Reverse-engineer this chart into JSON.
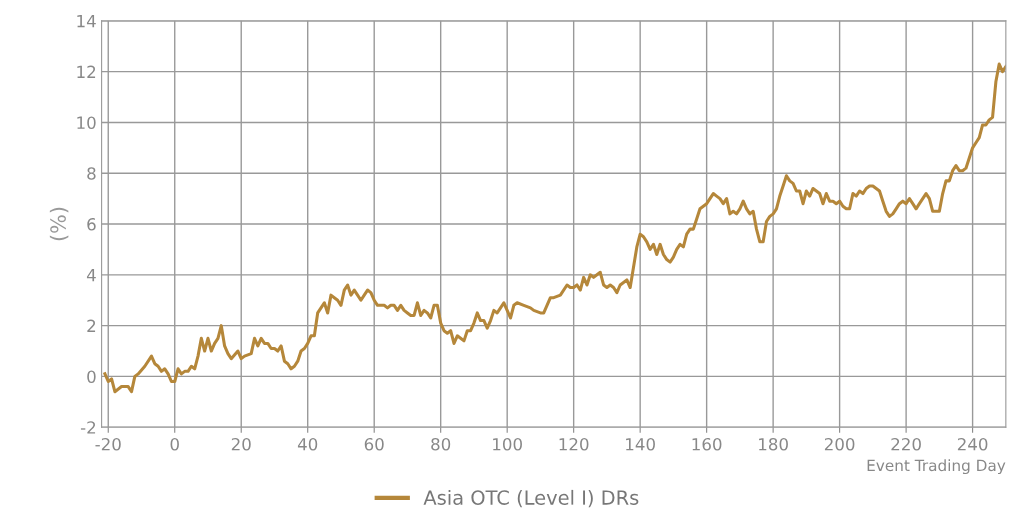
{
  "chart_data": {
    "type": "line",
    "xlabel": "Event Trading Day",
    "ylabel": "(%)",
    "xlim": [
      -22,
      250
    ],
    "xticks": [
      -20,
      0,
      20,
      40,
      60,
      80,
      100,
      120,
      140,
      160,
      180,
      200,
      220,
      240
    ],
    "ylim": [
      -2,
      14
    ],
    "yticks": [
      -2,
      0,
      2,
      4,
      6,
      8,
      10,
      12,
      14
    ],
    "grid": true,
    "legend": "bottom",
    "marker": "none",
    "line_style": "solid",
    "series": [
      {
        "name": "Asia OTC (Level I) DRs",
        "color": "#b5873a",
        "x": [
          -21,
          -20,
          -19,
          -18,
          -16,
          -14,
          -13,
          -12,
          -11,
          -9,
          -7,
          -6,
          -5,
          -4,
          -3,
          -2,
          -1,
          0,
          1,
          2,
          3,
          4,
          5,
          6,
          7,
          8,
          9,
          10,
          11,
          12,
          13,
          14,
          15,
          16,
          17,
          19,
          20,
          21,
          23,
          24,
          25,
          26,
          27,
          28,
          29,
          30,
          31,
          32,
          33,
          34,
          35,
          36,
          37,
          38,
          39,
          40,
          41,
          42,
          43,
          44,
          45,
          46,
          47,
          48,
          49,
          50,
          51,
          52,
          53,
          54,
          55,
          56,
          57,
          58,
          59,
          60,
          61,
          63,
          64,
          65,
          66,
          67,
          68,
          69,
          70,
          71,
          72,
          73,
          74,
          75,
          76,
          77,
          78,
          79,
          80,
          81,
          82,
          83,
          84,
          85,
          86,
          87,
          88,
          89,
          90,
          91,
          92,
          93,
          94,
          95,
          96,
          97,
          98,
          99,
          100,
          101,
          102,
          103,
          105,
          107,
          108,
          110,
          111,
          113,
          114,
          116,
          118,
          119,
          120,
          121,
          122,
          123,
          124,
          125,
          126,
          127,
          128,
          129,
          130,
          131,
          132,
          133,
          134,
          135,
          136,
          137,
          138,
          139,
          140,
          141,
          142,
          143,
          144,
          145,
          146,
          147,
          148,
          149,
          150,
          151,
          152,
          153,
          154,
          155,
          156,
          157,
          158,
          159,
          160,
          161,
          162,
          163,
          164,
          165,
          166,
          167,
          168,
          169,
          170,
          171,
          172,
          173,
          174,
          175,
          176,
          177,
          178,
          179,
          180,
          181,
          182,
          183,
          184,
          185,
          186,
          187,
          188,
          189,
          190,
          191,
          192,
          193,
          194,
          195,
          196,
          197,
          198,
          199,
          200,
          201,
          202,
          203,
          204,
          205,
          206,
          207,
          208,
          209,
          210,
          211,
          212,
          213,
          214,
          215,
          216,
          217,
          218,
          219,
          220,
          221,
          222,
          223,
          224,
          225,
          226,
          227,
          228,
          229,
          230,
          231,
          232,
          233,
          234,
          235,
          236,
          237,
          238,
          239,
          240,
          241,
          242,
          243,
          244,
          245,
          246,
          247,
          248,
          249,
          250
        ],
        "values": [
          0.1,
          -0.2,
          -0.1,
          -0.6,
          -0.4,
          -0.4,
          -0.6,
          0,
          0.1,
          0.4,
          0.8,
          0.5,
          0.4,
          0.2,
          0.3,
          0.1,
          -0.2,
          -0.2,
          0.3,
          0.1,
          0.2,
          0.2,
          0.4,
          0.3,
          0.8,
          1.5,
          1.0,
          1.5,
          1.0,
          1.3,
          1.5,
          2.0,
          1.2,
          0.9,
          0.7,
          1.0,
          0.7,
          0.8,
          0.9,
          1.5,
          1.2,
          1.5,
          1.3,
          1.3,
          1.1,
          1.1,
          1.0,
          1.2,
          0.6,
          0.5,
          0.3,
          0.4,
          0.6,
          1.0,
          1.1,
          1.3,
          1.6,
          1.6,
          2.5,
          2.7,
          2.9,
          2.5,
          3.2,
          3.1,
          3.0,
          2.8,
          3.4,
          3.6,
          3.2,
          3.4,
          3.2,
          3.0,
          3.2,
          3.4,
          3.3,
          3.0,
          2.8,
          2.8,
          2.7,
          2.8,
          2.8,
          2.6,
          2.8,
          2.6,
          2.5,
          2.4,
          2.4,
          2.9,
          2.4,
          2.6,
          2.5,
          2.3,
          2.8,
          2.8,
          2.1,
          1.8,
          1.7,
          1.8,
          1.3,
          1.6,
          1.5,
          1.4,
          1.8,
          1.8,
          2.1,
          2.5,
          2.2,
          2.2,
          1.9,
          2.2,
          2.6,
          2.5,
          2.7,
          2.9,
          2.6,
          2.3,
          2.8,
          2.9,
          2.8,
          2.7,
          2.6,
          2.5,
          2.5,
          3.1,
          3.1,
          3.2,
          3.6,
          3.5,
          3.5,
          3.6,
          3.4,
          3.9,
          3.6,
          4.0,
          3.9,
          4.0,
          4.1,
          3.6,
          3.5,
          3.6,
          3.5,
          3.3,
          3.6,
          3.7,
          3.8,
          3.5,
          4.3,
          5.1,
          5.6,
          5.5,
          5.3,
          5.0,
          5.2,
          4.8,
          5.2,
          4.8,
          4.6,
          4.5,
          4.7,
          5.0,
          5.2,
          5.1,
          5.6,
          5.8,
          5.8,
          6.2,
          6.6,
          6.7,
          6.8,
          7.0,
          7.2,
          7.1,
          7.0,
          6.8,
          7.0,
          6.4,
          6.5,
          6.4,
          6.6,
          6.9,
          6.6,
          6.4,
          6.5,
          5.8,
          5.3,
          5.3,
          6.1,
          6.3,
          6.4,
          6.6,
          7.1,
          7.5,
          7.9,
          7.7,
          7.6,
          7.3,
          7.3,
          6.8,
          7.3,
          7.1,
          7.4,
          7.3,
          7.2,
          6.8,
          7.2,
          6.9,
          6.9,
          6.8,
          6.9,
          6.7,
          6.6,
          6.6,
          7.2,
          7.1,
          7.3,
          7.2,
          7.4,
          7.5,
          7.5,
          7.4,
          7.3,
          6.9,
          6.5,
          6.3,
          6.4,
          6.6,
          6.8,
          6.9,
          6.8,
          7.0,
          6.8,
          6.6,
          6.8,
          7.0,
          7.2,
          7.0,
          6.5,
          6.5,
          6.5,
          7.2,
          7.7,
          7.7,
          8.1,
          8.3,
          8.1,
          8.1,
          8.2,
          8.6,
          9.0,
          9.2,
          9.4,
          9.9,
          9.9,
          10.1,
          10.2,
          11.6,
          12.3,
          12.0,
          12.2
        ]
      }
    ]
  }
}
